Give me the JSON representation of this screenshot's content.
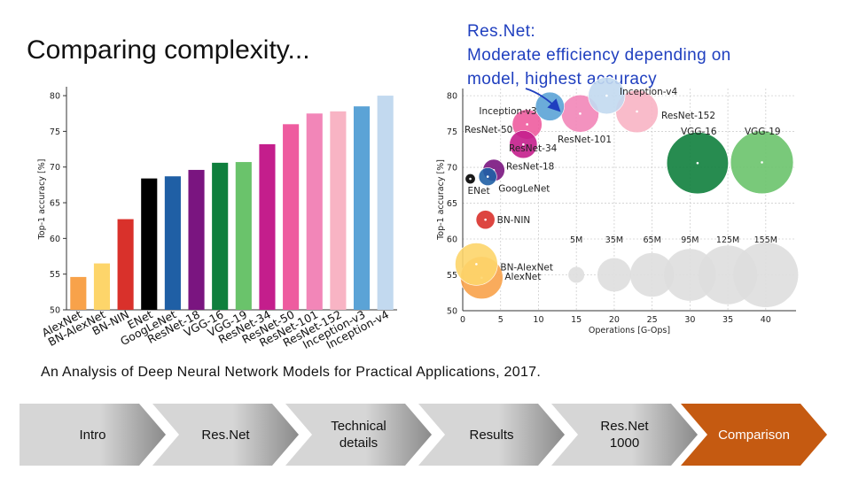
{
  "slide": {
    "title": "Comparing complexity...",
    "resnet_note": {
      "line1": "Res.Net:",
      "line2": "Moderate efficiency depending on",
      "line3": "model, highest accuracy"
    },
    "citation": "An Analysis of Deep Neural Network Models for Practical Applications, 2017."
  },
  "chart_data": [
    {
      "type": "bar",
      "ylabel": "Top-1 accuracy [%]",
      "ylim": [
        50,
        81
      ],
      "yticks": [
        50,
        55,
        60,
        65,
        70,
        75,
        80
      ],
      "categories": [
        "AlexNet",
        "BN-AlexNet",
        "BN-NIN",
        "ENet",
        "GoogLeNet",
        "ResNet-18",
        "VGG-16",
        "VGG-19",
        "ResNet-34",
        "ResNet-50",
        "ResNet-101",
        "ResNet-152",
        "Inception-v3",
        "Inception-v4"
      ],
      "values": [
        54.6,
        56.5,
        62.7,
        68.4,
        68.7,
        69.6,
        70.6,
        70.7,
        73.2,
        76.0,
        77.5,
        77.8,
        78.5,
        80.0
      ],
      "colors": [
        "#f8a24a",
        "#fdd56a",
        "#d9312b",
        "#000000",
        "#1f5fa5",
        "#7a1580",
        "#0f7f3d",
        "#6ac36b",
        "#c41e8c",
        "#ee5c9f",
        "#f286b8",
        "#f8b4c4",
        "#5ba3d6",
        "#c2d9ef"
      ]
    },
    {
      "type": "scatter",
      "xlabel": "Operations [G-Ops]",
      "ylabel": "Top-1 accuracy [%]",
      "xlim": [
        0,
        44
      ],
      "ylim": [
        50,
        81
      ],
      "xticks": [
        0,
        5,
        10,
        15,
        20,
        25,
        30,
        35,
        40
      ],
      "yticks": [
        50,
        55,
        60,
        65,
        70,
        75,
        80
      ],
      "points": [
        {
          "label": "AlexNet",
          "x": 2.5,
          "y": 54.6,
          "size": 60,
          "color": "#f8a24a"
        },
        {
          "label": "BN-AlexNet",
          "x": 1.8,
          "y": 56.5,
          "size": 60,
          "color": "#fdd56a"
        },
        {
          "label": "BN-NIN",
          "x": 3.0,
          "y": 62.7,
          "size": 8,
          "color": "#d9312b"
        },
        {
          "label": "ENet",
          "x": 1.0,
          "y": 68.4,
          "size": 1,
          "color": "#000000"
        },
        {
          "label": "GoogLeNet",
          "x": 3.3,
          "y": 68.7,
          "size": 7,
          "color": "#1f5fa5"
        },
        {
          "label": "ResNet-18",
          "x": 4.1,
          "y": 69.6,
          "size": 12,
          "color": "#7a1580"
        },
        {
          "label": "ResNet-34",
          "x": 8.0,
          "y": 73.2,
          "size": 22,
          "color": "#c41e8c"
        },
        {
          "label": "ResNet-50",
          "x": 8.5,
          "y": 76.0,
          "size": 26,
          "color": "#ee5c9f"
        },
        {
          "label": "Inception-v3",
          "x": 11.5,
          "y": 78.5,
          "size": 24,
          "color": "#5ba3d6"
        },
        {
          "label": "ResNet-101",
          "x": 15.5,
          "y": 77.5,
          "size": 45,
          "color": "#f286b8"
        },
        {
          "label": "Inception-v4",
          "x": 19.0,
          "y": 80.0,
          "size": 43,
          "color": "#c2d9ef"
        },
        {
          "label": "ResNet-152",
          "x": 23.0,
          "y": 77.8,
          "size": 60,
          "color": "#f8b4c4"
        },
        {
          "label": "VGG-16",
          "x": 31.0,
          "y": 70.6,
          "size": 138,
          "color": "#0f7f3d"
        },
        {
          "label": "VGG-19",
          "x": 39.5,
          "y": 70.7,
          "size": 144,
          "color": "#6ac36b"
        }
      ],
      "annotations": [
        "Inception-v4",
        "Inception-v3",
        "ResNet-152",
        "ResNet-50",
        "ResNet-101",
        "ResNet-34",
        "VGG-16",
        "VGG-19",
        "ResNet-18",
        "GoogLeNet",
        "ENet",
        "BN-NIN",
        "BN-AlexNet",
        "AlexNet"
      ],
      "size_legend": {
        "labels": [
          "5M",
          "35M",
          "65M",
          "95M",
          "125M",
          "155M"
        ],
        "x": [
          15,
          20,
          25,
          30,
          35,
          40
        ],
        "y": 55,
        "params": [
          5,
          35,
          65,
          95,
          125,
          155
        ]
      }
    }
  ],
  "nav": {
    "steps": [
      {
        "label": "Intro",
        "active": false
      },
      {
        "label": "Res.Net",
        "active": false
      },
      {
        "label": "Technical details",
        "active": false
      },
      {
        "label": "Results",
        "active": false
      },
      {
        "label": "Res.Net 1000",
        "active": false
      },
      {
        "label": "Comparison",
        "active": true
      }
    ],
    "colors": {
      "inactive_light": "#d6d6d6",
      "inactive_dark": "#8a8a8a",
      "active": "#c55a11",
      "active_text": "#ffffff"
    }
  }
}
